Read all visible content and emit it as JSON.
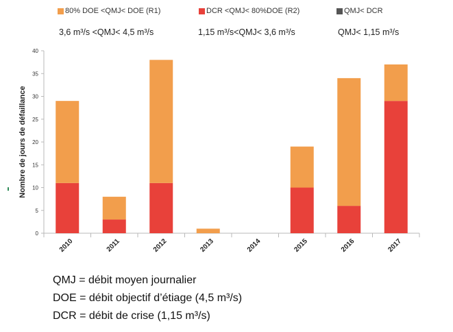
{
  "legend": {
    "items": [
      {
        "label": "80% DOE <QMJ< DOE (R1)",
        "color": "#F29E4C"
      },
      {
        "label": "DCR <QMJ< 80%DOE (R2)",
        "color": "#E8413A"
      },
      {
        "label": "QMJ< DCR",
        "color": "#555555"
      }
    ],
    "sublabels": [
      "3,6  m³/s  <QMJ< 4,5 m³/s",
      "1,15 m³/s<QMJ< 3,6  m³/s",
      "QMJ< 1,15 m³/s"
    ]
  },
  "chart_data": {
    "type": "bar",
    "stacked": true,
    "categories": [
      "2010",
      "2011",
      "2012",
      "2013",
      "2014",
      "2015",
      "2016",
      "2017"
    ],
    "series": [
      {
        "name": "DCR <QMJ< 80%DOE (R2)",
        "color": "#E8413A",
        "values": [
          11,
          3,
          11,
          0,
          0,
          10,
          6,
          29
        ]
      },
      {
        "name": "80% DOE <QMJ< DOE (R1)",
        "color": "#F29E4C",
        "values": [
          18,
          5,
          27,
          1,
          0,
          9,
          28,
          8
        ]
      },
      {
        "name": "QMJ< DCR",
        "color": "#555555",
        "values": [
          0,
          0,
          0,
          0,
          0,
          0,
          0,
          0
        ]
      }
    ],
    "ylabel": "Nombre de jours de défaillance",
    "xlabel": "",
    "ylim": [
      0,
      40
    ],
    "yticks": [
      0,
      5,
      10,
      15,
      20,
      25,
      30,
      35,
      40
    ],
    "grid": false
  },
  "notes": [
    "QMJ = débit moyen journalier",
    "DOE = débit objectif d’étiage (4,5 m³/s)",
    "DCR = débit de crise (1,15 m³/s)"
  ]
}
